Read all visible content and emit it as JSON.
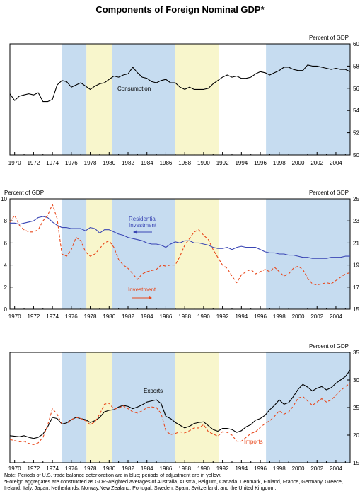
{
  "title": "Components of Foreign Nominal GDP*",
  "colors": {
    "deterioration": "#c6dcf0",
    "adjustment": "#f8f6cc",
    "black": "#000000",
    "red": "#e8481c",
    "blue": "#3a46b4"
  },
  "notes": {
    "note": "Note:  Periods of U.S. trade balance deterioration are in blue; periods of adjustment are in yellow.",
    "footnote": "*Foreign aggregates are constructed as GDP-weighted averages of Australia, Austria, Belgium, Canada, Denmark, Finland, France, Germany, Greece, Ireland, Italy, Japan, Netherlands, Norway,New Zealand, Portugal, Sweden, Spain, Switzerland, and the United Kingdom."
  },
  "chart_data": [
    {
      "type": "line",
      "unit_label_right": "Percent of GDP",
      "x_ticks": [
        "1970",
        "1972",
        "1974",
        "1976",
        "1978",
        "1980",
        "1982",
        "1984",
        "1986",
        "1988",
        "1990",
        "1992",
        "1994",
        "1996",
        "1998",
        "2000",
        "2002",
        "2004"
      ],
      "xlim": [
        1969.5,
        2005.5
      ],
      "y_right": {
        "ylim": [
          50,
          60
        ],
        "ticks": [
          "50",
          "52",
          "54",
          "56",
          "58",
          "60"
        ]
      },
      "shaded_periods": [
        {
          "kind": "deterioration",
          "start": 1975.0,
          "end": 1977.6
        },
        {
          "kind": "adjustment",
          "start": 1977.6,
          "end": 1980.3
        },
        {
          "kind": "deterioration",
          "start": 1980.3,
          "end": 1987.0
        },
        {
          "kind": "adjustment",
          "start": 1987.0,
          "end": 1991.6
        },
        {
          "kind": "deterioration",
          "start": 1996.6,
          "end": 2005.5
        }
      ],
      "series": [
        {
          "name": "Consumption",
          "axis": "right",
          "style": "solid",
          "color": "#000000",
          "x": [
            1969.5,
            1970,
            1970.5,
            1971,
            1971.5,
            1972,
            1972.5,
            1973,
            1973.5,
            1974,
            1974.5,
            1975,
            1975.5,
            1976,
            1976.5,
            1977,
            1977.5,
            1978,
            1978.5,
            1979,
            1979.5,
            1980,
            1980.5,
            1981,
            1981.5,
            1982,
            1982.5,
            1983,
            1983.5,
            1984,
            1984.5,
            1985,
            1985.5,
            1986,
            1986.5,
            1987,
            1987.5,
            1988,
            1988.5,
            1989,
            1989.5,
            1990,
            1990.5,
            1991,
            1991.5,
            1992,
            1992.5,
            1993,
            1993.5,
            1994,
            1994.5,
            1995,
            1995.5,
            1996,
            1996.5,
            1997,
            1997.5,
            1998,
            1998.5,
            1999,
            1999.5,
            2000,
            2000.5,
            2001,
            2001.5,
            2002,
            2002.5,
            2003,
            2003.5,
            2004,
            2004.5,
            2005,
            2005.5
          ],
          "values": [
            55.5,
            54.9,
            55.3,
            55.4,
            55.5,
            55.4,
            55.6,
            54.8,
            54.8,
            55.0,
            56.3,
            56.7,
            56.6,
            56.1,
            56.3,
            56.5,
            56.2,
            55.9,
            56.2,
            56.4,
            56.5,
            56.8,
            57.1,
            57.0,
            57.2,
            57.3,
            57.9,
            57.4,
            57.0,
            56.9,
            56.6,
            56.5,
            56.7,
            56.8,
            56.5,
            56.5,
            56.1,
            55.9,
            56.1,
            55.9,
            55.9,
            55.9,
            56.0,
            56.4,
            56.7,
            57.0,
            57.2,
            57.0,
            57.1,
            56.9,
            56.9,
            57.0,
            57.3,
            57.5,
            57.4,
            57.2,
            57.4,
            57.6,
            57.9,
            57.9,
            57.7,
            57.6,
            57.6,
            58.1,
            58.0,
            58.0,
            57.9,
            57.8,
            57.7,
            57.8,
            57.7,
            57.7,
            57.5
          ]
        }
      ],
      "annotations": [
        "Consumption"
      ]
    },
    {
      "type": "line",
      "unit_label_left": "Percent of GDP",
      "unit_label_right": "Percent of GDP",
      "x_ticks": [
        "1970",
        "1972",
        "1974",
        "1976",
        "1978",
        "1980",
        "1982",
        "1984",
        "1986",
        "1988",
        "1990",
        "1992",
        "1994",
        "1996",
        "1998",
        "2000",
        "2002",
        "2004"
      ],
      "xlim": [
        1969.5,
        2005.5
      ],
      "y_left": {
        "ylim": [
          0,
          10
        ],
        "ticks": [
          "0",
          "2",
          "4",
          "6",
          "8",
          "10"
        ]
      },
      "y_right": {
        "ylim": [
          15,
          25
        ],
        "ticks": [
          "15",
          "17",
          "19",
          "21",
          "23",
          "25"
        ]
      },
      "shaded_periods": [
        {
          "kind": "deterioration",
          "start": 1975.0,
          "end": 1977.6
        },
        {
          "kind": "adjustment",
          "start": 1977.6,
          "end": 1980.3
        },
        {
          "kind": "deterioration",
          "start": 1980.3,
          "end": 1987.0
        },
        {
          "kind": "adjustment",
          "start": 1987.0,
          "end": 1991.6
        },
        {
          "kind": "deterioration",
          "start": 1996.6,
          "end": 2005.5
        }
      ],
      "series": [
        {
          "name": "Residential Investment",
          "axis": "left",
          "style": "solid",
          "color": "#3a46b4",
          "x": [
            1969.5,
            1970,
            1970.5,
            1971,
            1971.5,
            1972,
            1972.5,
            1973,
            1973.5,
            1974,
            1974.5,
            1975,
            1975.5,
            1976,
            1976.5,
            1977,
            1977.5,
            1978,
            1978.5,
            1979,
            1979.5,
            1980,
            1980.5,
            1981,
            1981.5,
            1982,
            1982.5,
            1983,
            1983.5,
            1984,
            1984.5,
            1985,
            1985.5,
            1986,
            1986.5,
            1987,
            1987.5,
            1988,
            1988.5,
            1989,
            1989.5,
            1990,
            1990.5,
            1991,
            1991.5,
            1992,
            1992.5,
            1993,
            1993.5,
            1994,
            1994.5,
            1995,
            1995.5,
            1996,
            1996.5,
            1997,
            1997.5,
            1998,
            1998.5,
            1999,
            1999.5,
            2000,
            2000.5,
            2001,
            2001.5,
            2002,
            2002.5,
            2003,
            2003.5,
            2004,
            2004.5,
            2005,
            2005.5
          ],
          "values": [
            7.8,
            7.8,
            7.7,
            7.8,
            7.9,
            8.0,
            8.3,
            8.4,
            8.3,
            7.9,
            7.6,
            7.4,
            7.4,
            7.3,
            7.3,
            7.3,
            7.1,
            7.4,
            7.3,
            6.9,
            7.2,
            7.2,
            7.0,
            6.8,
            6.7,
            6.5,
            6.4,
            6.3,
            6.2,
            6.0,
            5.9,
            5.9,
            5.8,
            5.6,
            5.9,
            6.1,
            6.0,
            6.2,
            6.2,
            6.0,
            6.0,
            5.9,
            5.8,
            5.6,
            5.5,
            5.5,
            5.6,
            5.4,
            5.6,
            5.7,
            5.6,
            5.6,
            5.6,
            5.4,
            5.2,
            5.1,
            5.1,
            5.0,
            5.0,
            4.9,
            4.9,
            4.8,
            4.7,
            4.7,
            4.6,
            4.6,
            4.6,
            4.6,
            4.7,
            4.7,
            4.7,
            4.8,
            4.8
          ]
        },
        {
          "name": "Investment",
          "axis": "right",
          "style": "dashed",
          "color": "#e8481c",
          "x": [
            1969.5,
            1970,
            1970.5,
            1971,
            1971.5,
            1972,
            1972.5,
            1973,
            1973.5,
            1974,
            1974.5,
            1975,
            1975.5,
            1976,
            1976.5,
            1977,
            1977.5,
            1978,
            1978.5,
            1979,
            1979.5,
            1980,
            1980.5,
            1981,
            1981.5,
            1982,
            1982.5,
            1983,
            1983.5,
            1984,
            1984.5,
            1985,
            1985.5,
            1986,
            1986.5,
            1987,
            1987.5,
            1988,
            1988.5,
            1989,
            1989.5,
            1990,
            1990.5,
            1991,
            1991.5,
            1992,
            1992.5,
            1993,
            1993.5,
            1994,
            1994.5,
            1995,
            1995.5,
            1996,
            1996.5,
            1997,
            1997.5,
            1998,
            1998.5,
            1999,
            1999.5,
            2000,
            2000.5,
            2001,
            2001.5,
            2002,
            2002.5,
            2003,
            2003.5,
            2004,
            2004.5,
            2005,
            2005.5
          ],
          "values": [
            22.9,
            23.5,
            22.6,
            22.2,
            22.0,
            22.0,
            22.2,
            23.0,
            23.5,
            24.5,
            23.2,
            20.0,
            19.8,
            20.4,
            21.5,
            21.2,
            20.2,
            19.8,
            20.0,
            20.5,
            21.0,
            21.2,
            20.6,
            19.5,
            19.0,
            18.7,
            18.2,
            17.7,
            18.2,
            18.4,
            18.5,
            18.6,
            19.0,
            18.9,
            19.0,
            19.0,
            19.8,
            20.8,
            21.4,
            22.0,
            22.2,
            21.7,
            21.3,
            20.4,
            19.7,
            19.0,
            18.7,
            18.0,
            17.4,
            18.1,
            18.4,
            18.6,
            18.2,
            18.4,
            18.6,
            18.4,
            18.8,
            18.4,
            18.0,
            18.2,
            18.7,
            18.9,
            18.6,
            17.8,
            17.3,
            17.2,
            17.3,
            17.4,
            17.3,
            17.6,
            17.9,
            18.2,
            18.3
          ]
        }
      ],
      "annotations": [
        "Residential Investment",
        "Investment"
      ]
    },
    {
      "type": "line",
      "unit_label_right": "Percent of GDP",
      "x_ticks": [
        "1970",
        "1972",
        "1974",
        "1976",
        "1978",
        "1980",
        "1982",
        "1984",
        "1986",
        "1988",
        "1990",
        "1992",
        "1994",
        "1996",
        "1998",
        "2000",
        "2002",
        "2004"
      ],
      "xlim": [
        1969.5,
        2005.5
      ],
      "y_right": {
        "ylim": [
          15,
          35
        ],
        "ticks": [
          "15",
          "20",
          "25",
          "30",
          "35"
        ]
      },
      "shaded_periods": [
        {
          "kind": "deterioration",
          "start": 1975.0,
          "end": 1977.6
        },
        {
          "kind": "adjustment",
          "start": 1977.6,
          "end": 1980.3
        },
        {
          "kind": "deterioration",
          "start": 1980.3,
          "end": 1987.0
        },
        {
          "kind": "adjustment",
          "start": 1987.0,
          "end": 1991.6
        },
        {
          "kind": "deterioration",
          "start": 1996.6,
          "end": 2005.5
        }
      ],
      "series": [
        {
          "name": "Exports",
          "axis": "right",
          "style": "solid",
          "color": "#000000",
          "x": [
            1969.5,
            1970,
            1970.5,
            1971,
            1971.5,
            1972,
            1972.5,
            1973,
            1973.5,
            1974,
            1974.5,
            1975,
            1975.5,
            1976,
            1976.5,
            1977,
            1977.5,
            1978,
            1978.5,
            1979,
            1979.5,
            1980,
            1980.5,
            1981,
            1981.5,
            1982,
            1982.5,
            1983,
            1983.5,
            1984,
            1984.5,
            1985,
            1985.5,
            1986,
            1986.5,
            1987,
            1987.5,
            1988,
            1988.5,
            1989,
            1989.5,
            1990,
            1990.5,
            1991,
            1991.5,
            1992,
            1992.5,
            1993,
            1993.5,
            1994,
            1994.5,
            1995,
            1995.5,
            1996,
            1996.5,
            1997,
            1997.5,
            1998,
            1998.5,
            1999,
            1999.5,
            2000,
            2000.5,
            2001,
            2001.5,
            2002,
            2002.5,
            2003,
            2003.5,
            2004,
            2004.5,
            2005,
            2005.5
          ],
          "values": [
            19.9,
            19.8,
            19.7,
            19.9,
            19.6,
            19.4,
            19.6,
            20.2,
            21.5,
            23.2,
            23.0,
            22.0,
            22.2,
            22.8,
            23.2,
            23.0,
            22.8,
            22.3,
            22.6,
            23.2,
            24.2,
            24.5,
            24.6,
            25.1,
            25.4,
            25.2,
            24.8,
            25.1,
            25.5,
            26.0,
            26.2,
            26.4,
            25.7,
            23.4,
            23.0,
            22.3,
            21.8,
            21.3,
            21.6,
            22.1,
            22.3,
            22.4,
            21.7,
            21.0,
            20.7,
            21.2,
            21.2,
            21.0,
            20.5,
            20.8,
            21.5,
            21.9,
            22.7,
            23.0,
            23.6,
            24.6,
            25.4,
            26.4,
            25.6,
            25.9,
            27.0,
            28.3,
            29.2,
            28.7,
            28.0,
            28.5,
            28.8,
            28.2,
            28.6,
            29.4,
            30.0,
            30.6,
            31.8
          ]
        },
        {
          "name": "Imports",
          "axis": "right",
          "style": "dashed",
          "color": "#e8481c",
          "x": [
            1969.5,
            1970,
            1970.5,
            1971,
            1971.5,
            1972,
            1972.5,
            1973,
            1973.5,
            1974,
            1974.5,
            1975,
            1975.5,
            1976,
            1976.5,
            1977,
            1977.5,
            1978,
            1978.5,
            1979,
            1979.5,
            1980,
            1980.5,
            1981,
            1981.5,
            1982,
            1982.5,
            1983,
            1983.5,
            1984,
            1984.5,
            1985,
            1985.5,
            1986,
            1986.5,
            1987,
            1987.5,
            1988,
            1988.5,
            1989,
            1989.5,
            1990,
            1990.5,
            1991,
            1991.5,
            1992,
            1992.5,
            1993,
            1993.5,
            1994,
            1994.5,
            1995,
            1995.5,
            1996,
            1996.5,
            1997,
            1997.5,
            1998,
            1998.5,
            1999,
            1999.5,
            2000,
            2000.5,
            2001,
            2001.5,
            2002,
            2002.5,
            2003,
            2003.5,
            2004,
            2004.5,
            2005,
            2005.5
          ],
          "values": [
            19.2,
            19.0,
            18.8,
            18.9,
            18.5,
            18.3,
            18.6,
            19.6,
            21.8,
            24.8,
            23.8,
            22.0,
            22.0,
            22.8,
            23.2,
            23.0,
            22.6,
            21.9,
            22.4,
            23.8,
            25.6,
            25.8,
            24.7,
            24.9,
            25.3,
            24.8,
            24.2,
            24.0,
            24.4,
            25.0,
            25.1,
            25.0,
            23.9,
            20.8,
            20.1,
            20.3,
            20.6,
            20.4,
            20.8,
            21.3,
            21.3,
            21.9,
            20.6,
            20.2,
            19.8,
            20.6,
            20.5,
            20.0,
            18.9,
            18.9,
            19.6,
            20.3,
            20.6,
            21.4,
            22.1,
            22.6,
            23.4,
            24.4,
            23.8,
            24.2,
            25.3,
            26.7,
            27.0,
            26.2,
            25.4,
            26.0,
            26.6,
            26.0,
            26.4,
            27.2,
            28.1,
            28.8,
            29.4
          ]
        }
      ],
      "annotations": [
        "Exports",
        "Imports"
      ]
    }
  ]
}
